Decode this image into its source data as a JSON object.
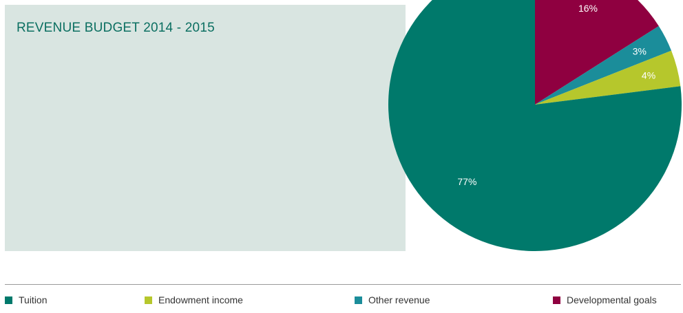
{
  "title": "REVENUE BUDGET 2014 - 2015",
  "chart_data": {
    "type": "pie",
    "title": "REVENUE BUDGET 2014 - 2015",
    "slices": [
      {
        "label": "Developmental goals",
        "value": 16,
        "display": "16%",
        "color": "#8f0040"
      },
      {
        "label": "Other revenue",
        "value": 3,
        "display": "3%",
        "color": "#1b8d9a"
      },
      {
        "label": "Endowment income",
        "value": 4,
        "display": "4%",
        "color": "#b6c72c"
      },
      {
        "label": "Tuition",
        "value": 77,
        "display": "77%",
        "color": "#00796b"
      }
    ],
    "legend_position": "bottom"
  },
  "legend": [
    {
      "label": "Tuition",
      "color": "#00796b"
    },
    {
      "label": "Endowment income",
      "color": "#b6c72c"
    },
    {
      "label": "Other revenue",
      "color": "#1b8d9a"
    },
    {
      "label": "Developmental goals",
      "color": "#8f0040"
    }
  ]
}
